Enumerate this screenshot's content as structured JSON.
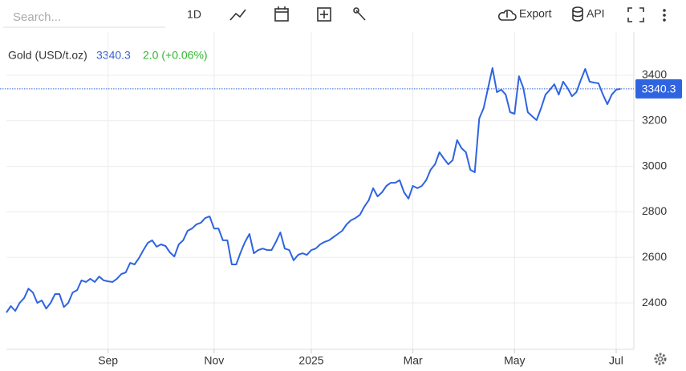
{
  "toolbar": {
    "search_placeholder": "Search...",
    "interval": "1D",
    "export": "Export",
    "api": "API"
  },
  "chart_data": {
    "type": "line",
    "title": "Gold (USD/t.oz)",
    "change": "2.0 (+0.06%)",
    "series": [
      {
        "name": "Gold",
        "color": "#2f64e0",
        "values": [
          2358,
          2386,
          2365,
          2400,
          2421,
          2463,
          2446,
          2400,
          2411,
          2375,
          2400,
          2439,
          2439,
          2382,
          2400,
          2446,
          2456,
          2499,
          2492,
          2506,
          2492,
          2516,
          2499,
          2495,
          2492,
          2506,
          2527,
          2534,
          2576,
          2569,
          2597,
          2632,
          2664,
          2675,
          2647,
          2657,
          2650,
          2622,
          2604,
          2657,
          2675,
          2717,
          2727,
          2745,
          2752,
          2773,
          2780,
          2727,
          2727,
          2675,
          2675,
          2569,
          2569,
          2622,
          2668,
          2703,
          2618,
          2632,
          2639,
          2632,
          2632,
          2668,
          2710,
          2639,
          2632,
          2587,
          2611,
          2618,
          2611,
          2632,
          2639,
          2657,
          2668,
          2675,
          2689,
          2703,
          2717,
          2745,
          2763,
          2773,
          2787,
          2823,
          2851,
          2904,
          2868,
          2886,
          2914,
          2928,
          2928,
          2939,
          2886,
          2858,
          2914,
          2904,
          2914,
          2939,
          2985,
          3009,
          3062,
          3034,
          3009,
          3027,
          3115,
          3080,
          3062,
          2985,
          2974,
          3210,
          3256,
          3344,
          3432,
          3326,
          3337,
          3315,
          3238,
          3231,
          3396,
          3344,
          3238,
          3220,
          3203,
          3256,
          3315,
          3337,
          3361,
          3315,
          3372,
          3344,
          3308,
          3326,
          3379,
          3428,
          3372,
          3368,
          3365,
          3315,
          3273,
          3315,
          3337,
          3340.3
        ]
      }
    ],
    "xlim": [
      0,
      142
    ],
    "xticks": [
      {
        "value": 23,
        "label": "Sep"
      },
      {
        "value": 47,
        "label": "Nov"
      },
      {
        "value": 69,
        "label": "2025"
      },
      {
        "value": 92,
        "label": "Mar"
      },
      {
        "value": 115,
        "label": "May"
      },
      {
        "value": 138,
        "label": "Jul"
      }
    ],
    "ylim": [
      2196,
      3590
    ],
    "yticks": [
      2400,
      2600,
      2800,
      3000,
      3200,
      3400
    ],
    "grid": true
  }
}
